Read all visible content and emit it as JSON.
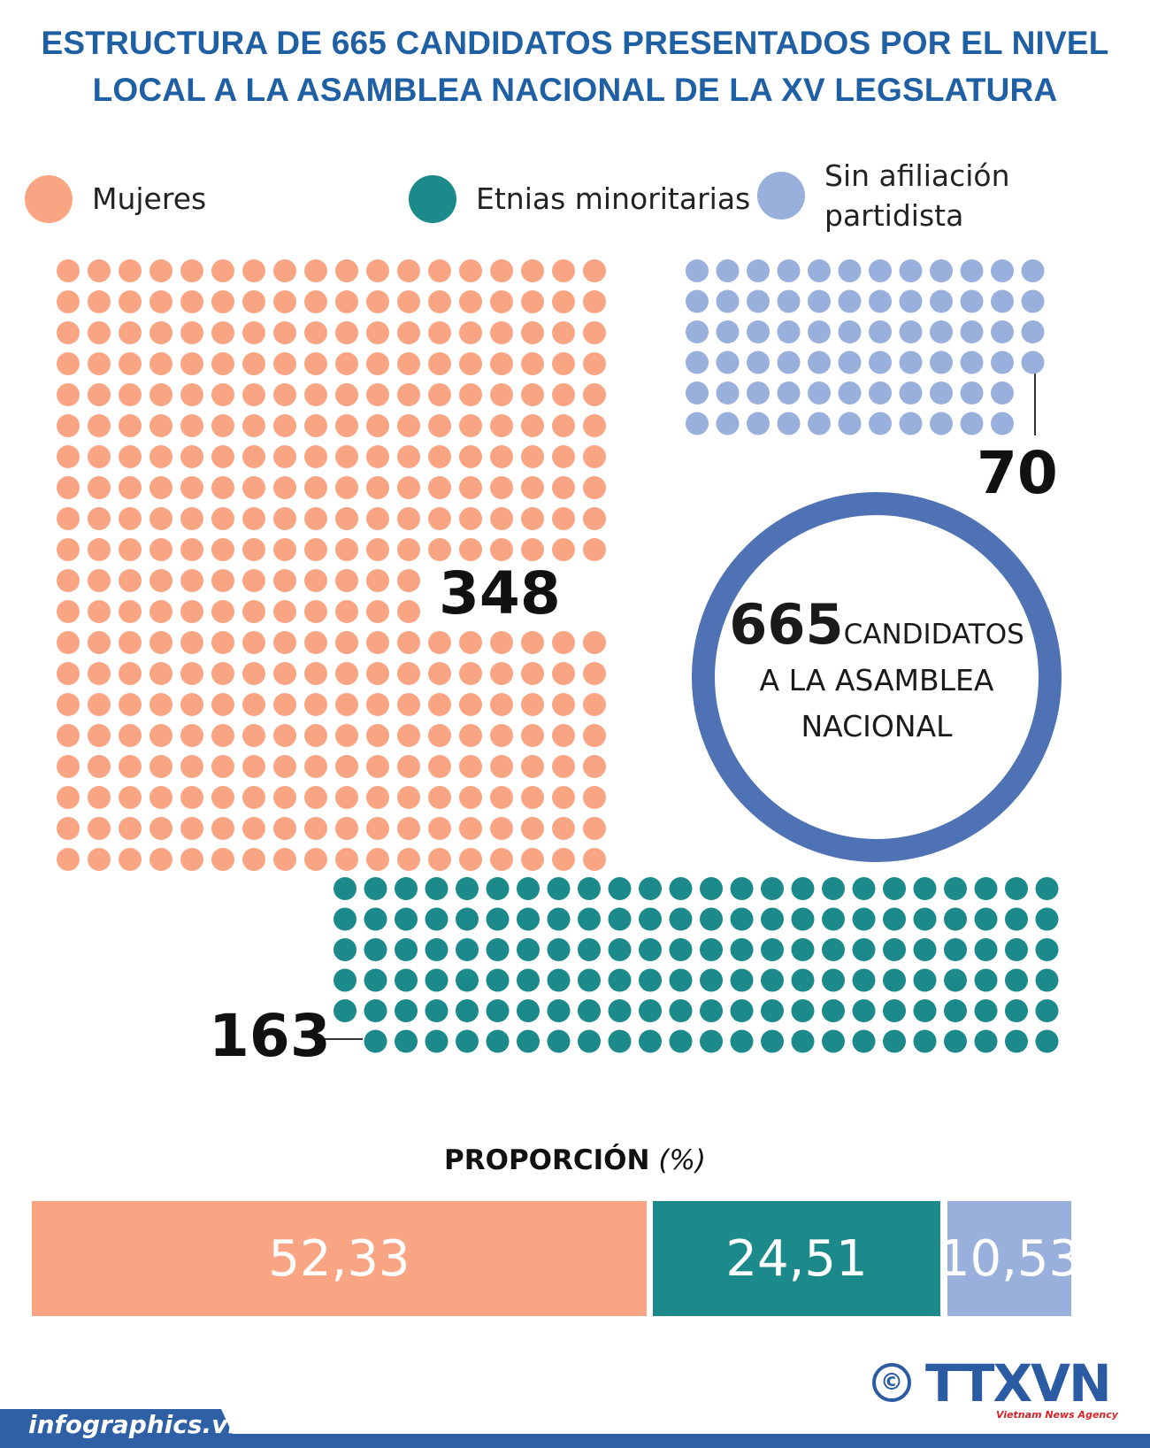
{
  "title": {
    "line1": "ESTRUCTURA DE  665 CANDIDATOS PRESENTADOS POR EL NIVEL",
    "line2": "LOCAL A LA ASAMBLEA NACIONAL DE LA XV LEGSLATURA"
  },
  "legend": [
    {
      "label": "Mujeres",
      "color": "#f9a584"
    },
    {
      "label": "Etnias minoritarias",
      "color": "#1c8a8b"
    },
    {
      "label_line1": "Sin afiliación",
      "label_line2": "partidista",
      "color": "#99b0dd"
    }
  ],
  "center_circle": {
    "number": "665",
    "line1": "CANDIDATOS",
    "line2": "A LA ASAMBLEA",
    "line3": "NACIONAL",
    "ring_color": "#4e72b3"
  },
  "chart_data": [
    {
      "type": "waffle",
      "total": 665,
      "series": [
        {
          "name": "Mujeres",
          "value": 348,
          "label": "348",
          "color": "#f9a584"
        },
        {
          "name": "Etnias minoritarias",
          "value": 163,
          "label": "163",
          "color": "#1c8a8b"
        },
        {
          "name": "Sin afiliación partidista",
          "value": 70,
          "label": "70",
          "color": "#99b0dd"
        }
      ]
    },
    {
      "type": "bar",
      "title": "PROPORCIÓN",
      "unit": "(%)",
      "categories": [
        "Mujeres",
        "Etnias minoritarias",
        "Sin afiliación partidista"
      ],
      "values": [
        52.33,
        24.51,
        10.53
      ],
      "labels": [
        "52,33",
        "24,51",
        "10,53"
      ],
      "colors": [
        "#f9a584",
        "#1c8a8b",
        "#99b0dd"
      ]
    }
  ],
  "footer": {
    "site": "infographics.vn",
    "logo": "TTXVN",
    "agency": "Vietnam News Agency",
    "copyright_symbol": "©"
  }
}
